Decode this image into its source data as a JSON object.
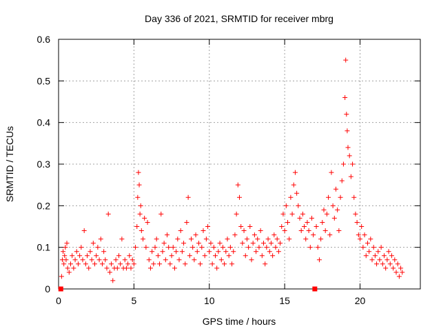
{
  "chart_data": {
    "type": "scatter",
    "title": "Day 336 of 2021, SRMTID for receiver mbrg",
    "xlabel": "GPS time / hours",
    "ylabel": "SRMTID / TECUs",
    "xlim": [
      0,
      24
    ],
    "ylim": [
      0,
      0.6
    ],
    "x_ticks": [
      0,
      5,
      10,
      15,
      20
    ],
    "y_ticks": [
      0,
      0.1,
      0.2,
      0.3,
      0.4,
      0.5,
      0.6
    ],
    "x_tick_labels": [
      "0",
      "5",
      "10",
      "15",
      "20"
    ],
    "y_tick_labels": [
      "0",
      "0.1",
      "0.2",
      "0.3",
      "0.4",
      "0.5",
      "0.6"
    ],
    "grid": true,
    "marker_color": "#ff0000",
    "series": [
      {
        "name": "SRMTID",
        "points": [
          [
            0.15,
            0.0
          ],
          [
            0.2,
            0.03
          ],
          [
            0.25,
            0.07
          ],
          [
            0.3,
            0.09
          ],
          [
            0.35,
            0.06
          ],
          [
            0.4,
            0.08
          ],
          [
            0.45,
            0.1
          ],
          [
            0.5,
            0.07
          ],
          [
            0.55,
            0.11
          ],
          [
            0.6,
            0.05
          ],
          [
            0.7,
            0.04
          ],
          [
            0.8,
            0.06
          ],
          [
            0.9,
            0.08
          ],
          [
            1.0,
            0.05
          ],
          [
            1.1,
            0.07
          ],
          [
            1.2,
            0.09
          ],
          [
            1.3,
            0.06
          ],
          [
            1.4,
            0.08
          ],
          [
            1.5,
            0.1
          ],
          [
            1.6,
            0.07
          ],
          [
            1.7,
            0.14
          ],
          [
            1.8,
            0.06
          ],
          [
            1.9,
            0.08
          ],
          [
            2.0,
            0.05
          ],
          [
            2.1,
            0.09
          ],
          [
            2.2,
            0.07
          ],
          [
            2.3,
            0.11
          ],
          [
            2.4,
            0.06
          ],
          [
            2.5,
            0.08
          ],
          [
            2.6,
            0.1
          ],
          [
            2.7,
            0.07
          ],
          [
            2.8,
            0.12
          ],
          [
            2.9,
            0.06
          ],
          [
            3.0,
            0.09
          ],
          [
            3.1,
            0.07
          ],
          [
            3.2,
            0.05
          ],
          [
            3.3,
            0.18
          ],
          [
            3.4,
            0.04
          ],
          [
            3.5,
            0.06
          ],
          [
            3.6,
            0.02
          ],
          [
            3.7,
            0.05
          ],
          [
            3.8,
            0.07
          ],
          [
            3.9,
            0.05
          ],
          [
            4.0,
            0.08
          ],
          [
            4.1,
            0.06
          ],
          [
            4.2,
            0.12
          ],
          [
            4.3,
            0.05
          ],
          [
            4.4,
            0.07
          ],
          [
            4.5,
            0.05
          ],
          [
            4.6,
            0.06
          ],
          [
            4.7,
            0.08
          ],
          [
            4.8,
            0.05
          ],
          [
            4.9,
            0.07
          ],
          [
            5.0,
            0.06
          ],
          [
            5.1,
            0.1
          ],
          [
            5.2,
            0.15
          ],
          [
            5.25,
            0.22
          ],
          [
            5.3,
            0.28
          ],
          [
            5.35,
            0.25
          ],
          [
            5.4,
            0.18
          ],
          [
            5.45,
            0.2
          ],
          [
            5.5,
            0.14
          ],
          [
            5.6,
            0.12
          ],
          [
            5.7,
            0.17
          ],
          [
            5.8,
            0.1
          ],
          [
            5.9,
            0.16
          ],
          [
            6.0,
            0.07
          ],
          [
            6.1,
            0.05
          ],
          [
            6.2,
            0.09
          ],
          [
            6.3,
            0.06
          ],
          [
            6.4,
            0.1
          ],
          [
            6.5,
            0.12
          ],
          [
            6.6,
            0.08
          ],
          [
            6.7,
            0.06
          ],
          [
            6.8,
            0.18
          ],
          [
            6.9,
            0.09
          ],
          [
            7.0,
            0.11
          ],
          [
            7.1,
            0.07
          ],
          [
            7.2,
            0.13
          ],
          [
            7.3,
            0.1
          ],
          [
            7.4,
            0.06
          ],
          [
            7.5,
            0.08
          ],
          [
            7.6,
            0.1
          ],
          [
            7.7,
            0.05
          ],
          [
            7.8,
            0.09
          ],
          [
            7.9,
            0.12
          ],
          [
            8.0,
            0.07
          ],
          [
            8.1,
            0.14
          ],
          [
            8.2,
            0.09
          ],
          [
            8.3,
            0.11
          ],
          [
            8.4,
            0.06
          ],
          [
            8.5,
            0.16
          ],
          [
            8.6,
            0.22
          ],
          [
            8.7,
            0.08
          ],
          [
            8.8,
            0.12
          ],
          [
            8.9,
            0.1
          ],
          [
            9.0,
            0.07
          ],
          [
            9.1,
            0.13
          ],
          [
            9.2,
            0.09
          ],
          [
            9.3,
            0.11
          ],
          [
            9.4,
            0.06
          ],
          [
            9.5,
            0.1
          ],
          [
            9.6,
            0.14
          ],
          [
            9.7,
            0.08
          ],
          [
            9.8,
            0.12
          ],
          [
            9.9,
            0.15
          ],
          [
            10.0,
            0.09
          ],
          [
            10.1,
            0.11
          ],
          [
            10.2,
            0.06
          ],
          [
            10.3,
            0.1
          ],
          [
            10.4,
            0.08
          ],
          [
            10.5,
            0.05
          ],
          [
            10.6,
            0.09
          ],
          [
            10.7,
            0.11
          ],
          [
            10.8,
            0.07
          ],
          [
            10.9,
            0.1
          ],
          [
            11.0,
            0.06
          ],
          [
            11.1,
            0.09
          ],
          [
            11.2,
            0.12
          ],
          [
            11.3,
            0.08
          ],
          [
            11.4,
            0.1
          ],
          [
            11.5,
            0.06
          ],
          [
            11.6,
            0.09
          ],
          [
            11.7,
            0.13
          ],
          [
            11.8,
            0.18
          ],
          [
            11.9,
            0.25
          ],
          [
            12.0,
            0.22
          ],
          [
            12.1,
            0.15
          ],
          [
            12.2,
            0.11
          ],
          [
            12.3,
            0.14
          ],
          [
            12.4,
            0.08
          ],
          [
            12.5,
            0.12
          ],
          [
            12.6,
            0.1
          ],
          [
            12.7,
            0.15
          ],
          [
            12.8,
            0.07
          ],
          [
            12.9,
            0.11
          ],
          [
            13.0,
            0.13
          ],
          [
            13.1,
            0.09
          ],
          [
            13.2,
            0.12
          ],
          [
            13.3,
            0.1
          ],
          [
            13.4,
            0.14
          ],
          [
            13.5,
            0.08
          ],
          [
            13.6,
            0.11
          ],
          [
            13.7,
            0.06
          ],
          [
            13.8,
            0.1
          ],
          [
            13.9,
            0.12
          ],
          [
            14.0,
            0.09
          ],
          [
            14.1,
            0.11
          ],
          [
            14.2,
            0.08
          ],
          [
            14.3,
            0.13
          ],
          [
            14.4,
            0.1
          ],
          [
            14.5,
            0.12
          ],
          [
            14.6,
            0.09
          ],
          [
            14.7,
            0.11
          ],
          [
            14.8,
            0.15
          ],
          [
            14.9,
            0.18
          ],
          [
            15.0,
            0.14
          ],
          [
            15.1,
            0.2
          ],
          [
            15.2,
            0.16
          ],
          [
            15.3,
            0.12
          ],
          [
            15.4,
            0.22
          ],
          [
            15.5,
            0.18
          ],
          [
            15.6,
            0.25
          ],
          [
            15.7,
            0.28
          ],
          [
            15.8,
            0.23
          ],
          [
            15.9,
            0.2
          ],
          [
            16.0,
            0.17
          ],
          [
            16.1,
            0.14
          ],
          [
            16.2,
            0.18
          ],
          [
            16.3,
            0.15
          ],
          [
            16.4,
            0.12
          ],
          [
            16.5,
            0.16
          ],
          [
            16.6,
            0.14
          ],
          [
            16.7,
            0.1
          ],
          [
            16.8,
            0.17
          ],
          [
            16.9,
            0.13
          ],
          [
            17.1,
            0.15
          ],
          [
            17.2,
            0.1
          ],
          [
            17.3,
            0.07
          ],
          [
            17.4,
            0.12
          ],
          [
            17.5,
            0.16
          ],
          [
            17.6,
            0.19
          ],
          [
            17.7,
            0.14
          ],
          [
            17.8,
            0.18
          ],
          [
            17.9,
            0.22
          ],
          [
            18.0,
            0.13
          ],
          [
            18.1,
            0.28
          ],
          [
            18.2,
            0.2
          ],
          [
            18.3,
            0.17
          ],
          [
            18.4,
            0.24
          ],
          [
            18.5,
            0.19
          ],
          [
            18.6,
            0.14
          ],
          [
            18.7,
            0.22
          ],
          [
            18.8,
            0.26
          ],
          [
            18.9,
            0.3
          ],
          [
            19.0,
            0.46
          ],
          [
            19.05,
            0.55
          ],
          [
            19.1,
            0.42
          ],
          [
            19.15,
            0.38
          ],
          [
            19.2,
            0.34
          ],
          [
            19.3,
            0.32
          ],
          [
            19.4,
            0.27
          ],
          [
            19.5,
            0.3
          ],
          [
            19.6,
            0.22
          ],
          [
            19.7,
            0.18
          ],
          [
            19.8,
            0.16
          ],
          [
            19.9,
            0.13
          ],
          [
            20.0,
            0.12
          ],
          [
            20.1,
            0.15
          ],
          [
            20.2,
            0.1
          ],
          [
            20.3,
            0.13
          ],
          [
            20.4,
            0.08
          ],
          [
            20.5,
            0.11
          ],
          [
            20.6,
            0.09
          ],
          [
            20.7,
            0.12
          ],
          [
            20.8,
            0.07
          ],
          [
            20.9,
            0.1
          ],
          [
            21.0,
            0.08
          ],
          [
            21.1,
            0.06
          ],
          [
            21.2,
            0.09
          ],
          [
            21.3,
            0.07
          ],
          [
            21.4,
            0.1
          ],
          [
            21.5,
            0.06
          ],
          [
            21.6,
            0.08
          ],
          [
            21.7,
            0.05
          ],
          [
            21.8,
            0.07
          ],
          [
            21.9,
            0.09
          ],
          [
            22.0,
            0.06
          ],
          [
            22.1,
            0.08
          ],
          [
            22.2,
            0.05
          ],
          [
            22.3,
            0.07
          ],
          [
            22.4,
            0.04
          ],
          [
            22.5,
            0.06
          ],
          [
            22.6,
            0.03
          ],
          [
            22.7,
            0.05
          ],
          [
            22.8,
            0.04
          ]
        ]
      }
    ],
    "square_markers": [
      [
        0.15,
        0.0
      ],
      [
        17.0,
        0.0
      ]
    ]
  }
}
